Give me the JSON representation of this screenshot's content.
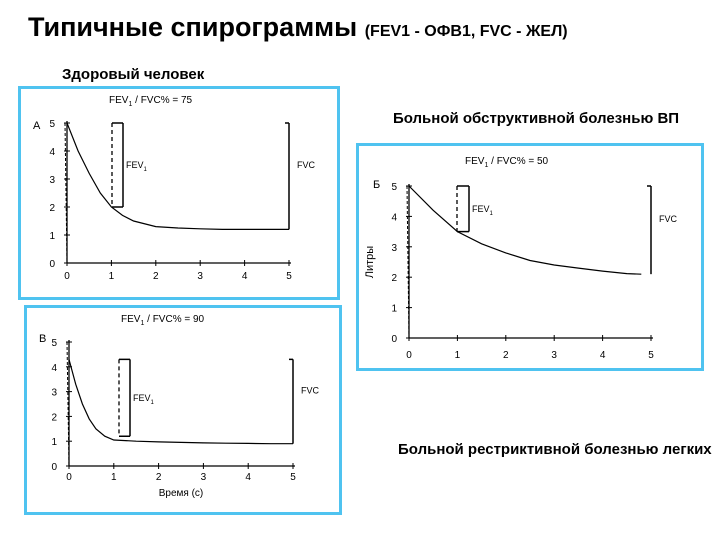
{
  "slide": {
    "title": "Типичные спирограммы",
    "title_suffix": "(FEV1 - ОФВ1, FVC - ЖЕЛ)",
    "caption_healthy": "Здоровый человек",
    "caption_obstructive": "Больной обструктивной болезнью ВП",
    "caption_restrictive": "Больной рестриктивной болезнью легких"
  },
  "chart_data": [
    {
      "type": "line",
      "panel_letter": "А",
      "ratio_label": "= 75",
      "fev_label": "FEV",
      "fvc_label": "FVC",
      "ylabel": "",
      "xlabel": "",
      "x_ticks": [
        "0",
        "1",
        "2",
        "3",
        "4",
        "5"
      ],
      "y_ticks": [
        "0",
        "1",
        "2",
        "3",
        "4",
        "5"
      ],
      "xlim": [
        0,
        5
      ],
      "ylim": [
        0,
        5
      ],
      "fev1_range": [
        2.0,
        5.0
      ],
      "fvc_range": [
        1.2,
        5.0
      ],
      "x": [
        0,
        0.25,
        0.5,
        0.75,
        1,
        1.25,
        1.5,
        2,
        2.5,
        3,
        3.5,
        4,
        4.5,
        5
      ],
      "y": [
        5.0,
        4.0,
        3.2,
        2.5,
        2.0,
        1.7,
        1.5,
        1.3,
        1.25,
        1.22,
        1.2,
        1.2,
        1.2,
        1.2
      ]
    },
    {
      "type": "line",
      "panel_letter": "Б",
      "ratio_label": "= 50",
      "fev_label": "FEV",
      "fvc_label": "FVC",
      "ylabel": "Литры",
      "xlabel": "",
      "x_ticks": [
        "0",
        "1",
        "2",
        "3",
        "4",
        "5"
      ],
      "y_ticks": [
        "0",
        "1",
        "2",
        "3",
        "4",
        "5"
      ],
      "xlim": [
        0,
        5
      ],
      "ylim": [
        0,
        5
      ],
      "fev1_range": [
        3.5,
        5.0
      ],
      "fvc_range": [
        2.1,
        5.0
      ],
      "x": [
        0,
        0.5,
        1,
        1.5,
        2,
        2.5,
        3,
        3.5,
        4,
        4.5,
        4.8
      ],
      "y": [
        5.0,
        4.2,
        3.5,
        3.1,
        2.8,
        2.55,
        2.4,
        2.3,
        2.2,
        2.12,
        2.1
      ]
    },
    {
      "type": "line",
      "panel_letter": "В",
      "ratio_label": "= 90",
      "fev_label": "FEV",
      "fvc_label": "FVC",
      "ylabel": "",
      "xlabel": "Время (с)",
      "x_ticks": [
        "0",
        "1",
        "2",
        "3",
        "4",
        "5"
      ],
      "y_ticks": [
        "0",
        "1",
        "2",
        "3",
        "4",
        "5"
      ],
      "xlim": [
        0,
        5
      ],
      "ylim": [
        0,
        5
      ],
      "fev1_range": [
        1.2,
        4.3
      ],
      "fvc_range": [
        0.9,
        4.3
      ],
      "x": [
        0,
        0.15,
        0.3,
        0.45,
        0.6,
        0.8,
        1,
        1.5,
        2,
        2.5,
        3,
        3.5,
        4,
        4.5,
        5
      ],
      "y": [
        4.3,
        3.3,
        2.5,
        1.9,
        1.5,
        1.2,
        1.05,
        1.0,
        0.97,
        0.95,
        0.93,
        0.92,
        0.91,
        0.9,
        0.9
      ]
    }
  ]
}
